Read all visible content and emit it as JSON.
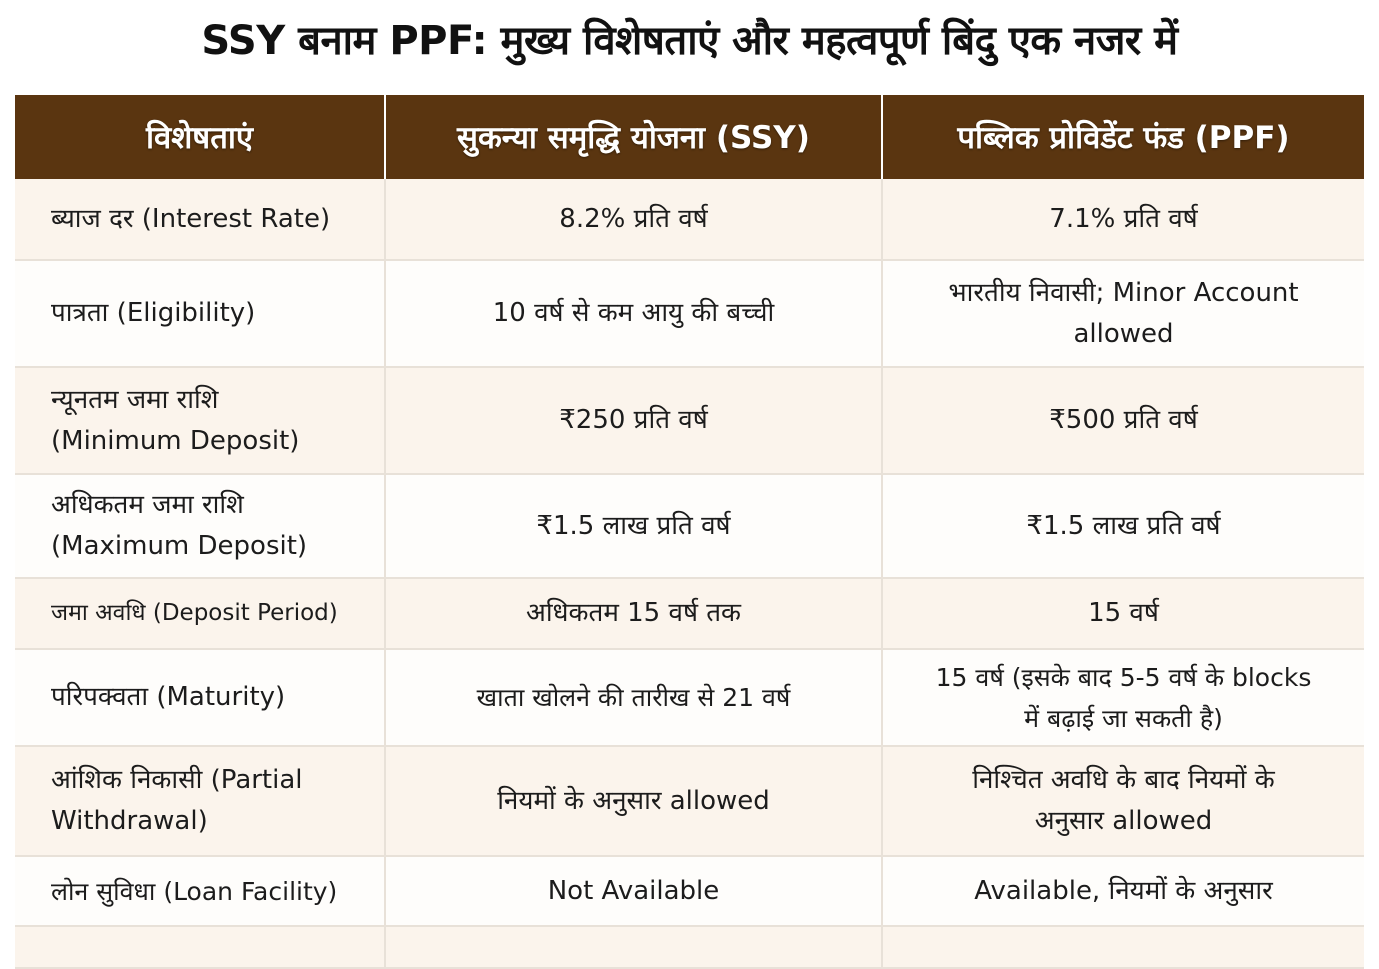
{
  "title": "SSY बनाम PPF: मुख्य विशेषताएं और महत्वपूर्ण बिंदु एक नजर में",
  "colors": {
    "header_bg": "#5a3510",
    "header_text": "#ffffff",
    "row_alt_bg": "#fbf4ec",
    "row_bg": "#fefdfb"
  },
  "table": {
    "headers": {
      "feature": "विशेषताएं",
      "ssy": "सुकन्या समृद्धि योजना (SSY)",
      "ppf": "पब्लिक प्रोविडेंट फंड (PPF)"
    },
    "rows": [
      {
        "feature": "ब्याज दर (Interest Rate)",
        "ssy": "8.2% प्रति वर्ष",
        "ppf": "7.1% प्रति वर्ष"
      },
      {
        "feature": "पात्रता (Eligibility)",
        "ssy": "10 वर्ष से कम आयु की बच्ची",
        "ppf": "भारतीय निवासी; Minor Account allowed"
      },
      {
        "feature": "न्यूनतम जमा राशि (Minimum Deposit)",
        "ssy": "₹250 प्रति वर्ष",
        "ppf": "₹500 प्रति वर्ष"
      },
      {
        "feature": "अधिकतम जमा राशि (Maximum Deposit)",
        "ssy": "₹1.5 लाख प्रति वर्ष",
        "ppf": "₹1.5 लाख प्रति वर्ष"
      },
      {
        "feature": "जमा अवधि (Deposit Period)",
        "ssy": "अधिकतम 15 वर्ष तक",
        "ppf": "15 वर्ष"
      },
      {
        "feature": "परिपक्वता (Maturity)",
        "ssy": "खाता खोलने की तारीख से 21 वर्ष",
        "ppf": "15 वर्ष (इसके बाद 5-5 वर्ष के blocks में बढ़ाई जा सकती है)"
      },
      {
        "feature": "आंशिक निकासी (Partial Withdrawal)",
        "ssy": "नियमों के अनुसार allowed",
        "ppf": "निश्चित अवधि के बाद नियमों के अनुसार allowed"
      },
      {
        "feature": "लोन सुविधा (Loan Facility)",
        "ssy": "Not Available",
        "ppf": "Available, नियमों के अनुसार"
      }
    ]
  }
}
